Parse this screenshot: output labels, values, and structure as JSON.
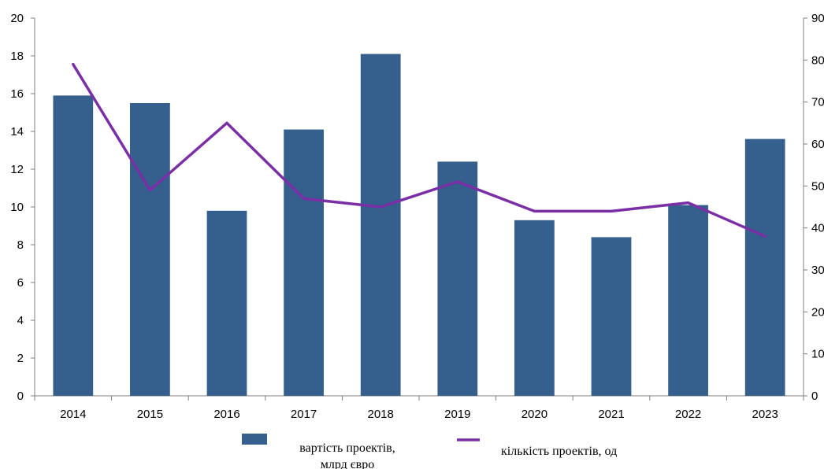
{
  "chart_data": {
    "type": "bar",
    "categories": [
      "2014",
      "2015",
      "2016",
      "2017",
      "2018",
      "2019",
      "2020",
      "2021",
      "2022",
      "2023"
    ],
    "series": [
      {
        "name": "вартість проектів, млрд євро",
        "legend_lines": [
          "вартість проектів,",
          "млрд євро"
        ],
        "type": "bar",
        "axis": "left",
        "color": "#355f8d",
        "values": [
          15.9,
          15.5,
          9.8,
          14.1,
          18.1,
          12.4,
          9.3,
          8.4,
          10.1,
          13.6
        ]
      },
      {
        "name": "кількість проектів, од",
        "legend_lines": [
          "кількість проектів, од"
        ],
        "type": "line",
        "axis": "right",
        "color": "#7b2fa6",
        "values": [
          79,
          49,
          65,
          47,
          45,
          51,
          44,
          44,
          46,
          38
        ]
      }
    ],
    "y_left": {
      "min": 0,
      "max": 20,
      "ticks": [
        "0",
        "2",
        "4",
        "6",
        "8",
        "10",
        "12",
        "14",
        "16",
        "18",
        "20"
      ]
    },
    "y_right": {
      "min": 0,
      "max": 90,
      "ticks": [
        "0",
        "10",
        "20",
        "30",
        "40",
        "50",
        "60",
        "70",
        "80",
        "90"
      ]
    },
    "grid": false,
    "legend_position": "bottom"
  }
}
